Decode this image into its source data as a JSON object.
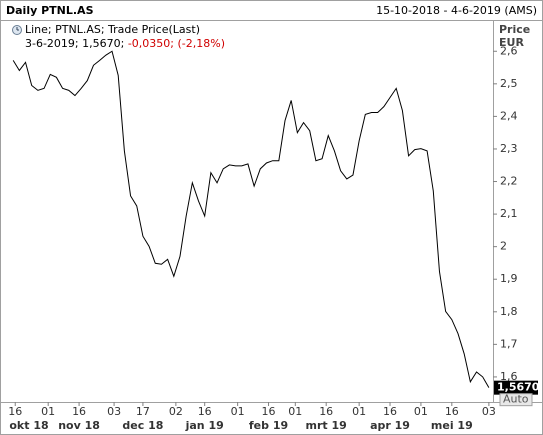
{
  "chart_data": {
    "type": "line",
    "title": "Daily PTNL.AS",
    "date_range": "15-10-2018 - 4-6-2019 (AMS)",
    "y_axis_label": "Price",
    "y_axis_unit": "EUR",
    "legend_status": "3-6-2019; 1,5670; ",
    "legend_change": "-0,0350; (-2,18%)",
    "change_color": "#d00000",
    "axis_mode": "Auto",
    "last_value_label": {
      "value": 1.567,
      "label": "1,5670"
    },
    "x": [
      "2018-10-15",
      "2018-10-18",
      "2018-10-21",
      "2018-10-24",
      "2018-10-27",
      "2018-10-30",
      "2018-11-02",
      "2018-11-05",
      "2018-11-08",
      "2018-11-11",
      "2018-11-14",
      "2018-11-17",
      "2018-11-20",
      "2018-11-23",
      "2018-11-26",
      "2018-11-29",
      "2018-12-02",
      "2018-12-05",
      "2018-12-08",
      "2018-12-11",
      "2018-12-14",
      "2018-12-17",
      "2018-12-20",
      "2018-12-23",
      "2018-12-26",
      "2018-12-29",
      "2019-01-01",
      "2019-01-04",
      "2019-01-07",
      "2019-01-10",
      "2019-01-13",
      "2019-01-16",
      "2019-01-19",
      "2019-01-22",
      "2019-01-25",
      "2019-01-28",
      "2019-01-31",
      "2019-02-03",
      "2019-02-06",
      "2019-02-09",
      "2019-02-12",
      "2019-02-15",
      "2019-02-18",
      "2019-02-21",
      "2019-02-24",
      "2019-02-27",
      "2019-03-02",
      "2019-03-05",
      "2019-03-08",
      "2019-03-11",
      "2019-03-14",
      "2019-03-17",
      "2019-03-20",
      "2019-03-23",
      "2019-03-26",
      "2019-03-29",
      "2019-04-01",
      "2019-04-04",
      "2019-04-07",
      "2019-04-10",
      "2019-04-13",
      "2019-04-16",
      "2019-04-19",
      "2019-04-22",
      "2019-04-25",
      "2019-04-28",
      "2019-05-01",
      "2019-05-04",
      "2019-05-07",
      "2019-05-10",
      "2019-05-13",
      "2019-05-16",
      "2019-05-19",
      "2019-05-22",
      "2019-05-25",
      "2019-05-28",
      "2019-05-31",
      "2019-06-03"
    ],
    "series": [
      {
        "name": "Line; PTNL.AS; Trade Price(Last)",
        "color": "#000000",
        "values": [
          2.572,
          2.541,
          2.566,
          2.495,
          2.48,
          2.486,
          2.529,
          2.52,
          2.486,
          2.48,
          2.464,
          2.486,
          2.51,
          2.557,
          2.572,
          2.588,
          2.6,
          2.526,
          2.294,
          2.156,
          2.125,
          2.032,
          2.001,
          1.949,
          1.946,
          1.961,
          1.909,
          1.97,
          2.094,
          2.196,
          2.14,
          2.094,
          2.227,
          2.196,
          2.239,
          2.251,
          2.248,
          2.248,
          2.254,
          2.186,
          2.239,
          2.257,
          2.264,
          2.264,
          2.387,
          2.449,
          2.35,
          2.381,
          2.356,
          2.264,
          2.27,
          2.341,
          2.294,
          2.233,
          2.208,
          2.22,
          2.325,
          2.406,
          2.412,
          2.412,
          2.43,
          2.458,
          2.486,
          2.418,
          2.279,
          2.298,
          2.301,
          2.294,
          2.171,
          1.924,
          1.801,
          1.776,
          1.733,
          1.671,
          1.585,
          1.615,
          1.6,
          1.567
        ]
      }
    ],
    "xlim": [
      "2018-10-12",
      "2019-06-05"
    ],
    "xticks": [
      {
        "value": "2018-10-16",
        "label": "16"
      },
      {
        "value": "2018-11-01",
        "label": "01"
      },
      {
        "value": "2018-11-16",
        "label": "16"
      },
      {
        "value": "2018-12-03",
        "label": "03"
      },
      {
        "value": "2018-12-17",
        "label": "17"
      },
      {
        "value": "2019-01-02",
        "label": "02"
      },
      {
        "value": "2019-01-16",
        "label": "16"
      },
      {
        "value": "2019-02-01",
        "label": "01"
      },
      {
        "value": "2019-02-16",
        "label": "16"
      },
      {
        "value": "2019-03-01",
        "label": "01"
      },
      {
        "value": "2019-03-16",
        "label": "16"
      },
      {
        "value": "2019-04-01",
        "label": "01"
      },
      {
        "value": "2019-04-16",
        "label": "16"
      },
      {
        "value": "2019-05-01",
        "label": "01"
      },
      {
        "value": "2019-05-16",
        "label": "16"
      },
      {
        "value": "2019-06-03",
        "label": "03"
      }
    ],
    "month_labels": [
      {
        "value": "2018-10-16",
        "label": "okt 18"
      },
      {
        "value": "2018-11-16",
        "label": "nov 18"
      },
      {
        "value": "2018-12-17",
        "label": "dec 18"
      },
      {
        "value": "2019-01-16",
        "label": "jan 19"
      },
      {
        "value": "2019-02-16",
        "label": "feb 19"
      },
      {
        "value": "2019-03-16",
        "label": "mrt 19"
      },
      {
        "value": "2019-04-16",
        "label": "apr 19"
      },
      {
        "value": "2019-05-16",
        "label": "mei 19"
      }
    ],
    "ylim": [
      1.523,
      2.696
    ],
    "yticks": [
      {
        "value": 2.6,
        "label": "2,6"
      },
      {
        "value": 2.5,
        "label": "2,5"
      },
      {
        "value": 2.4,
        "label": "2,4"
      },
      {
        "value": 2.3,
        "label": "2,3"
      },
      {
        "value": 2.2,
        "label": "2,2"
      },
      {
        "value": 2.1,
        "label": "2,1"
      },
      2,
      {
        "value": 1.9,
        "label": "1,9"
      },
      {
        "value": 1.8,
        "label": "1,8"
      },
      {
        "value": 1.7,
        "label": "1,7"
      },
      {
        "value": 1.6,
        "label": "1,6"
      }
    ],
    "grid": false
  }
}
